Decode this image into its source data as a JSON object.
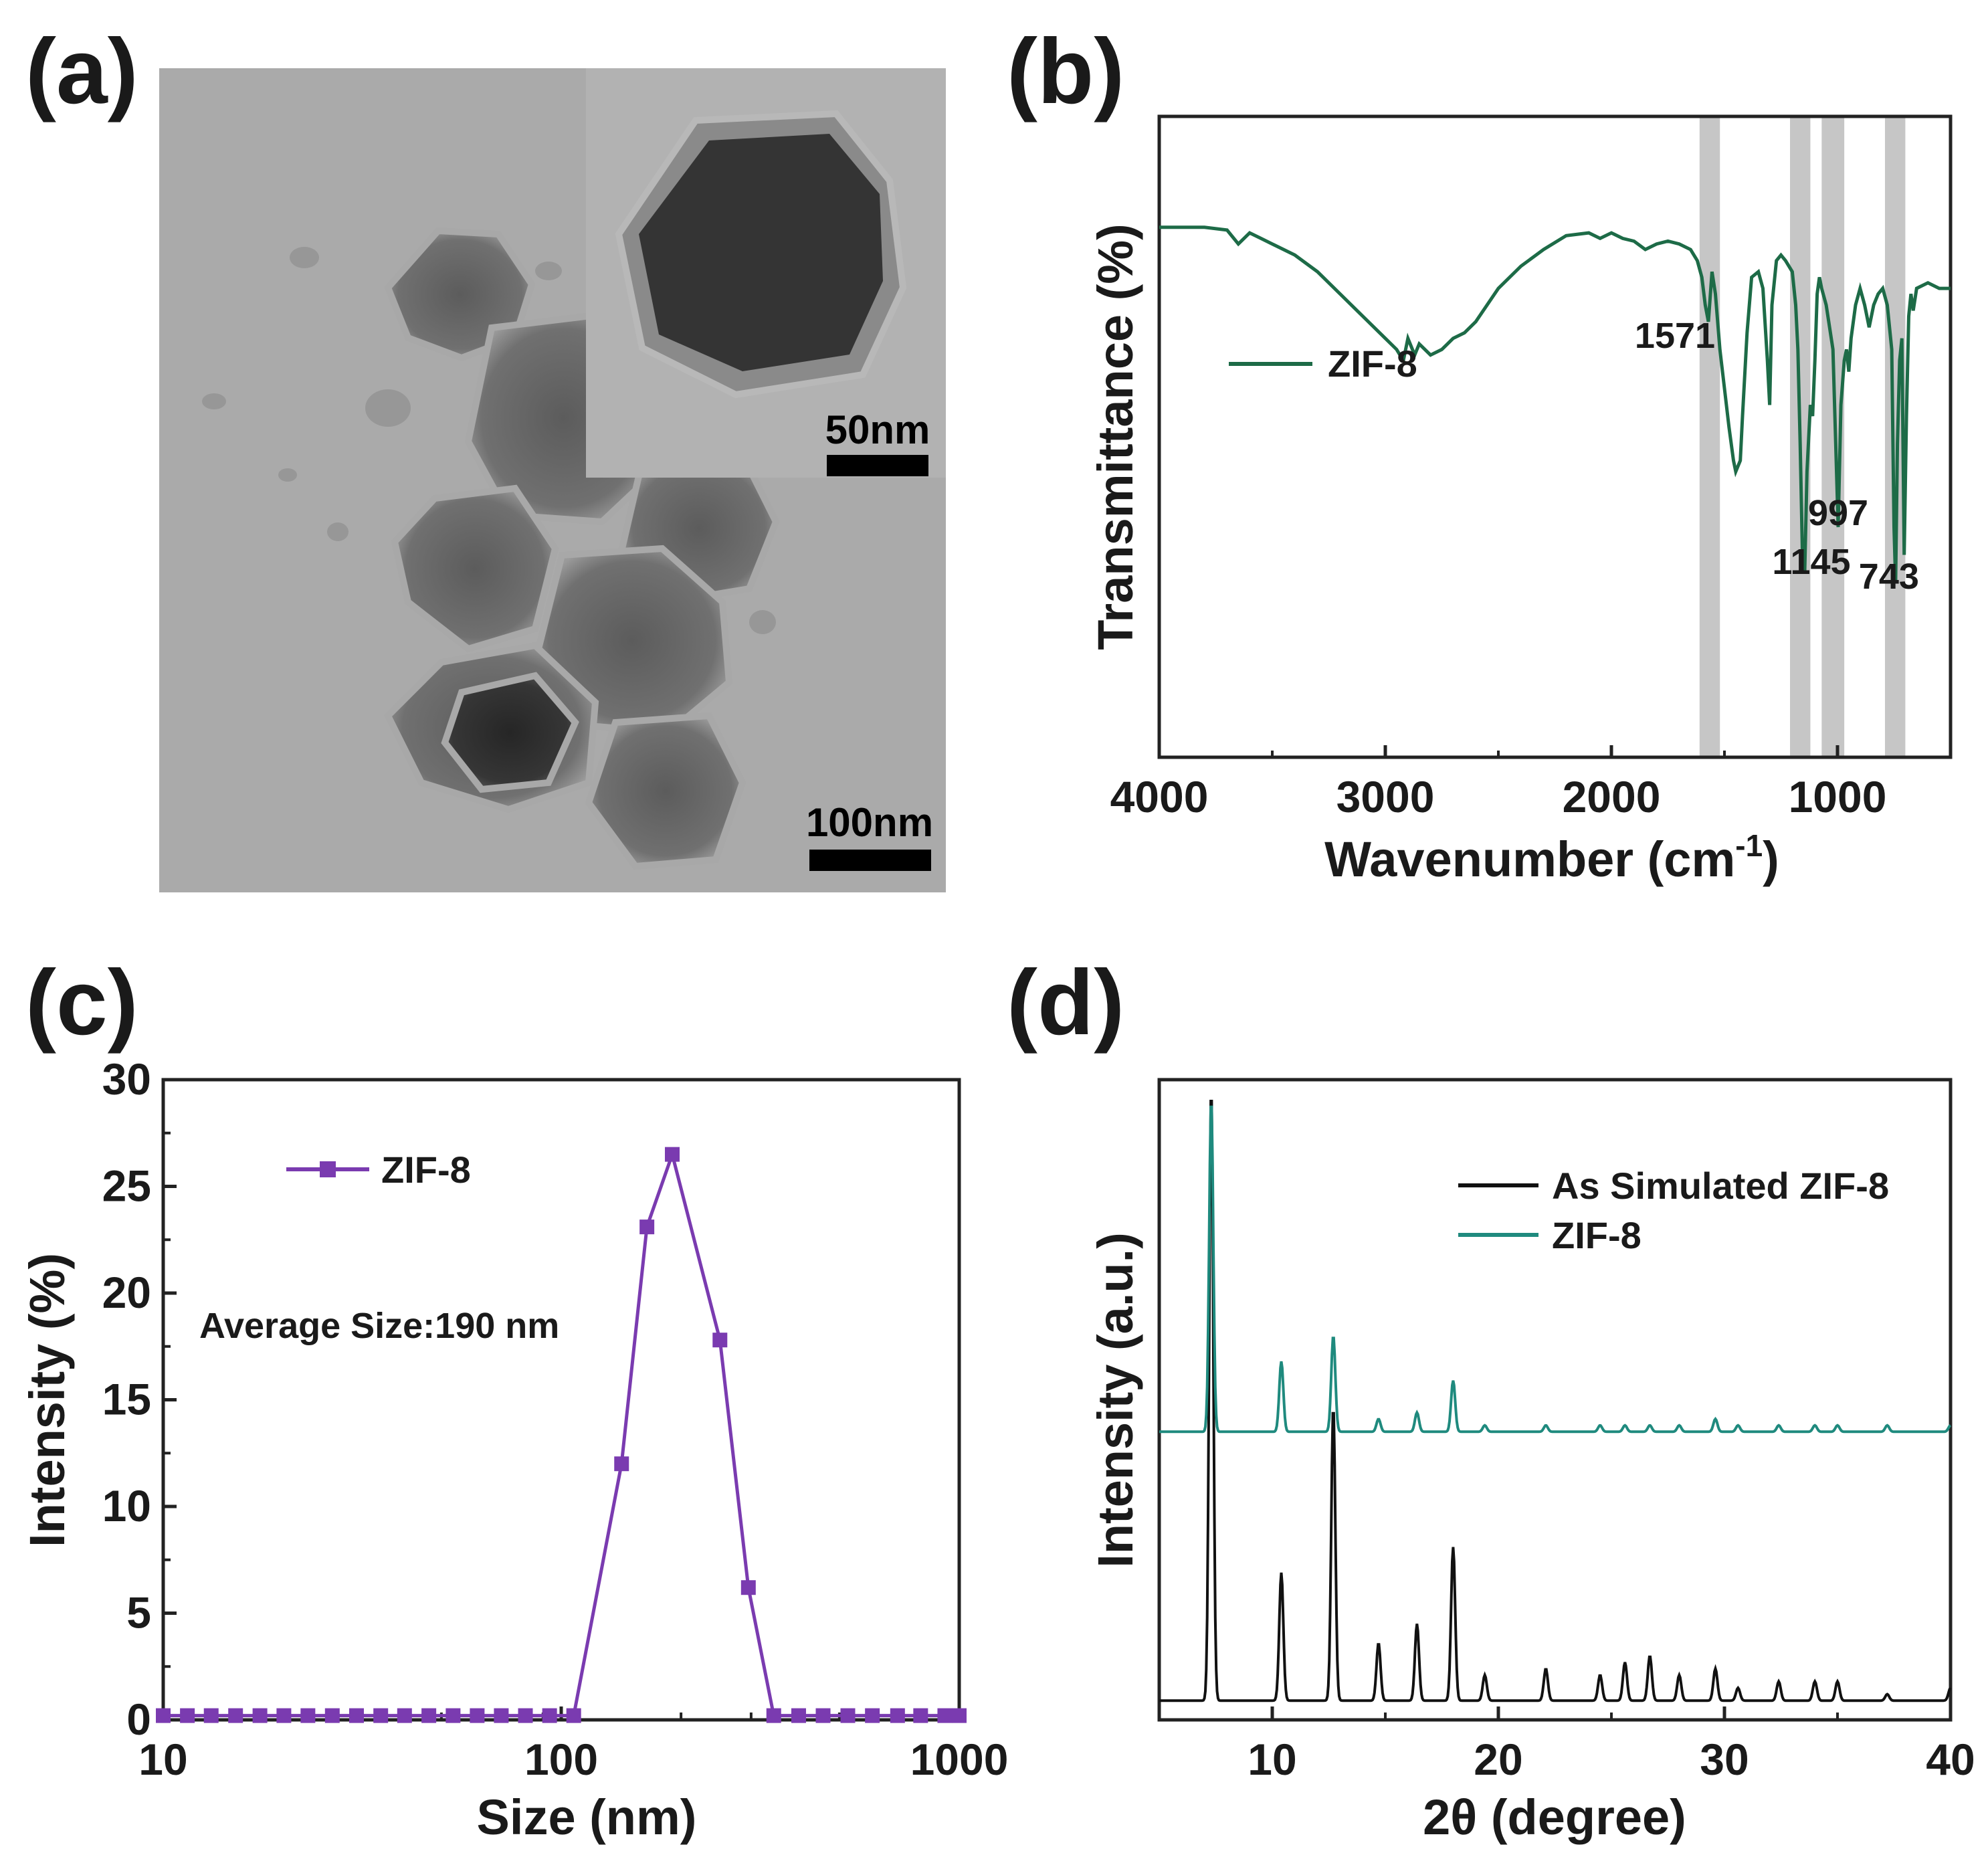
{
  "panels": {
    "a": {
      "label": "(a)",
      "scale_main": "100nm",
      "scale_inset": "50nm"
    },
    "b": {
      "label": "(b)"
    },
    "c": {
      "label": "(c)"
    },
    "d": {
      "label": "(d)"
    }
  },
  "chart_data": [
    {
      "id": "b",
      "type": "line",
      "title": "",
      "xlabel": "Wavenumber (cm",
      "xlabel_sup": "-1",
      "xlabel_tail": ")",
      "ylabel": "Transmittance (%)",
      "xlim": [
        4000,
        500
      ],
      "xticks": [
        4000,
        3000,
        2000,
        1000
      ],
      "ylim": [
        0,
        100
      ],
      "legend": {
        "position": "upper-left",
        "entries": [
          "ZIF-8"
        ]
      },
      "color": "#1d6b47",
      "highlight_bands": [
        [
          1610,
          1520
        ],
        [
          1210,
          1120
        ],
        [
          1070,
          970
        ],
        [
          790,
          700
        ]
      ],
      "annotations": [
        {
          "text": "1571",
          "x": 1571
        },
        {
          "text": "1145",
          "x": 1145
        },
        {
          "text": "997",
          "x": 997
        },
        {
          "text": "743",
          "x": 743
        }
      ],
      "series": [
        {
          "name": "ZIF-8",
          "x": [
            4000,
            3800,
            3700,
            3650,
            3600,
            3550,
            3500,
            3400,
            3300,
            3200,
            3100,
            3000,
            2950,
            2920,
            2900,
            2870,
            2850,
            2800,
            2750,
            2700,
            2650,
            2600,
            2500,
            2400,
            2300,
            2200,
            2100,
            2050,
            2000,
            1950,
            1900,
            1850,
            1800,
            1750,
            1700,
            1650,
            1620,
            1600,
            1585,
            1571,
            1555,
            1540,
            1520,
            1500,
            1480,
            1460,
            1450,
            1430,
            1420,
            1400,
            1380,
            1350,
            1330,
            1310,
            1300,
            1290,
            1270,
            1250,
            1230,
            1200,
            1185,
            1175,
            1165,
            1155,
            1145,
            1135,
            1120,
            1110,
            1100,
            1090,
            1080,
            1070,
            1050,
            1020,
            1010,
            997,
            985,
            970,
            960,
            950,
            940,
            920,
            900,
            880,
            860,
            840,
            820,
            800,
            780,
            760,
            750,
            743,
            735,
            725,
            715,
            705,
            695,
            685,
            675,
            665,
            650,
            600,
            550,
            500
          ],
          "y": [
            94,
            94,
            93.5,
            91,
            93,
            92,
            91,
            89,
            86,
            82,
            78,
            74,
            72,
            70,
            74,
            71,
            73,
            71,
            72,
            74,
            75,
            77,
            83,
            87,
            90,
            92.5,
            93,
            92,
            93,
            92,
            91.5,
            90,
            91,
            91.5,
            91,
            90,
            88,
            85,
            80,
            77,
            86,
            82,
            72,
            65,
            58,
            52,
            50,
            52,
            60,
            75,
            85,
            86,
            83,
            70,
            62,
            80,
            88,
            89,
            88,
            86,
            80,
            72,
            55,
            35,
            32,
            50,
            62,
            60,
            70,
            82,
            85,
            83,
            80,
            72,
            58,
            40,
            62,
            70,
            72,
            68,
            74,
            80,
            83,
            80,
            76,
            80,
            82,
            83,
            80,
            72,
            40,
            30,
            55,
            70,
            74,
            35,
            60,
            78,
            82,
            79,
            83,
            84,
            83,
            83
          ]
        }
      ]
    },
    {
      "id": "c",
      "type": "line",
      "title": "",
      "xlabel": "Size (nm)",
      "ylabel": "Intensity (%)",
      "xscale": "log",
      "xlim": [
        10,
        1000
      ],
      "xticks": [
        10,
        100,
        1000
      ],
      "ylim": [
        0,
        30
      ],
      "yticks": [
        0,
        5,
        10,
        15,
        20,
        25,
        30
      ],
      "legend": {
        "position": "upper-left",
        "entries": [
          "ZIF-8"
        ]
      },
      "annotation": "Average Size:190 nm",
      "color": "#7a3bb0",
      "series": [
        {
          "name": "ZIF-8",
          "x": [
            10,
            11.5,
            13.2,
            15.2,
            17.5,
            20.1,
            23.1,
            26.6,
            30.6,
            35.2,
            40.4,
            46.5,
            53.5,
            61.5,
            70.7,
            81.3,
            93.5,
            107.5,
            141.8,
            164.2,
            190.1,
            250.5,
            295.3,
            342,
            395,
            455,
            525,
            605,
            700,
            800,
            920,
            1000
          ],
          "y": [
            0.2,
            0.2,
            0.2,
            0.2,
            0.2,
            0.2,
            0.2,
            0.2,
            0.2,
            0.2,
            0.2,
            0.2,
            0.2,
            0.2,
            0.2,
            0.2,
            0.2,
            0.2,
            12.0,
            23.1,
            26.5,
            17.8,
            6.2,
            0.2,
            0.2,
            0.2,
            0.2,
            0.2,
            0.2,
            0.2,
            0.2,
            0.2
          ]
        }
      ]
    },
    {
      "id": "d",
      "type": "line",
      "title": "",
      "xlabel": "2θ (degree)",
      "ylabel": "Intensity (a.u.)",
      "xlim": [
        5,
        40
      ],
      "xticks": [
        10,
        20,
        30,
        40
      ],
      "ylim": [
        0,
        100
      ],
      "legend": {
        "position": "upper-right",
        "entries": [
          "As Simulated ZIF-8",
          "ZIF-8"
        ]
      },
      "peaks_2theta": [
        7.3,
        10.4,
        12.7,
        14.7,
        16.4,
        18.0,
        19.4,
        22.1,
        24.5,
        25.6,
        26.7,
        28.0,
        29.6,
        30.6,
        32.4,
        34.0,
        35.0,
        37.2,
        40.0
      ],
      "series": [
        {
          "name": "As Simulated ZIF-8",
          "color": "#111111",
          "baseline": 3,
          "peak_heights": [
            96,
            20,
            46,
            9,
            12,
            24,
            4,
            5,
            4,
            6,
            7,
            4,
            5,
            2,
            3,
            3,
            3,
            1,
            2
          ]
        },
        {
          "name": "ZIF-8",
          "color": "#1f8a7e",
          "baseline": 45,
          "peak_heights": [
            52,
            11,
            15,
            2,
            3,
            8,
            1,
            1,
            1,
            1,
            1,
            1,
            2,
            1,
            1,
            1,
            1,
            1,
            1
          ]
        }
      ]
    }
  ]
}
